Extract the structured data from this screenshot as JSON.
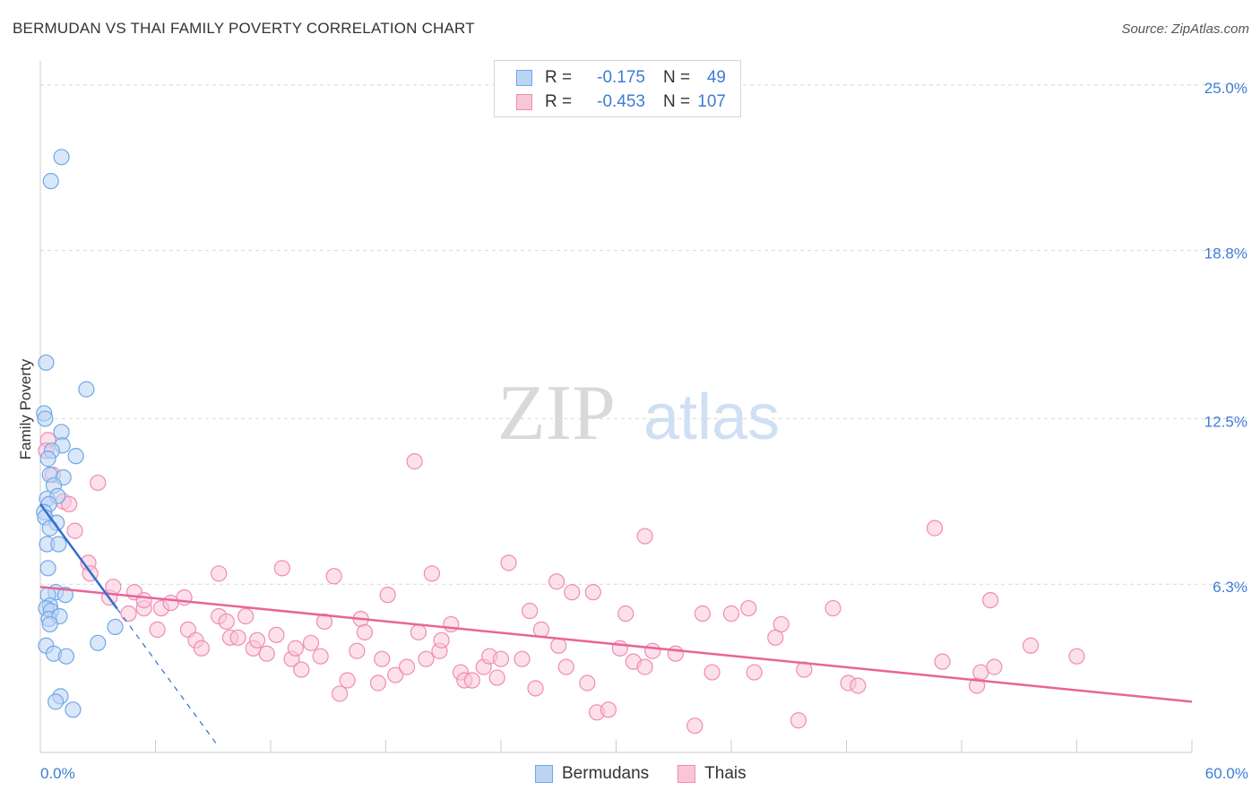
{
  "title": "BERMUDAN VS THAI FAMILY POVERTY CORRELATION CHART",
  "source": "Source: ZipAtlas.com",
  "watermark": {
    "zip": "ZIP",
    "atlas": "atlas"
  },
  "colors": {
    "blue": "#6fa8e8",
    "blue_fill": "#bcd4f4",
    "blue_line": "#2f6fd0",
    "pink": "#f08cb0",
    "pink_fill": "#f9c6d8",
    "pink_line": "#e8649a",
    "axis_text": "#3d7cd6",
    "grid": "#d8d8d8"
  },
  "legend": {
    "rows": [
      {
        "r_label": "R =",
        "r_value": "-0.175",
        "n_label": "N =",
        "n_value": "49"
      },
      {
        "r_label": "R =",
        "r_value": "-0.453",
        "n_label": "N =",
        "n_value": "107"
      }
    ]
  },
  "bottom_legend": {
    "bermudans": "Bermudans",
    "thais": "Thais"
  },
  "chart_data": {
    "type": "scatter",
    "title": "BERMUDAN VS THAI FAMILY POVERTY CORRELATION CHART",
    "xlabel": "",
    "ylabel": "Family Poverty",
    "xlim": [
      0,
      60
    ],
    "ylim": [
      0,
      25.9
    ],
    "x_tick_labels": [
      "0.0%",
      "60.0%"
    ],
    "y_ticks": [
      6.3,
      12.5,
      18.8,
      25.0
    ],
    "y_tick_labels": [
      "6.3%",
      "12.5%",
      "18.8%",
      "25.0%"
    ],
    "grid": true,
    "series": [
      {
        "name": "Bermudans",
        "points": [
          [
            1.1,
            22.3
          ],
          [
            0.55,
            21.4
          ],
          [
            0.3,
            14.6
          ],
          [
            2.4,
            13.6
          ],
          [
            0.2,
            12.7
          ],
          [
            0.25,
            12.5
          ],
          [
            1.1,
            12.0
          ],
          [
            1.15,
            11.5
          ],
          [
            0.6,
            11.3
          ],
          [
            1.85,
            11.1
          ],
          [
            0.4,
            11.0
          ],
          [
            0.5,
            10.4
          ],
          [
            1.2,
            10.3
          ],
          [
            0.7,
            10.0
          ],
          [
            0.35,
            9.5
          ],
          [
            0.9,
            9.6
          ],
          [
            0.45,
            9.3
          ],
          [
            0.2,
            9.0
          ],
          [
            0.25,
            8.8
          ],
          [
            0.85,
            8.6
          ],
          [
            0.5,
            8.4
          ],
          [
            0.35,
            7.8
          ],
          [
            0.95,
            7.8
          ],
          [
            0.4,
            6.9
          ],
          [
            0.8,
            6.0
          ],
          [
            1.3,
            5.9
          ],
          [
            0.4,
            5.9
          ],
          [
            0.5,
            5.5
          ],
          [
            0.3,
            5.4
          ],
          [
            0.55,
            5.3
          ],
          [
            0.45,
            5.0
          ],
          [
            1.0,
            5.1
          ],
          [
            0.5,
            4.8
          ],
          [
            3.9,
            4.7
          ],
          [
            3.0,
            4.1
          ],
          [
            0.3,
            4.0
          ],
          [
            0.7,
            3.7
          ],
          [
            1.35,
            3.6
          ],
          [
            1.05,
            2.1
          ],
          [
            0.8,
            1.9
          ],
          [
            1.7,
            1.6
          ]
        ]
      },
      {
        "name": "Thais",
        "points": [
          [
            0.4,
            11.7
          ],
          [
            0.3,
            11.3
          ],
          [
            0.65,
            10.4
          ],
          [
            3.0,
            10.1
          ],
          [
            1.2,
            9.4
          ],
          [
            1.5,
            9.3
          ],
          [
            1.8,
            8.3
          ],
          [
            2.5,
            7.1
          ],
          [
            2.6,
            6.7
          ],
          [
            3.6,
            5.8
          ],
          [
            3.8,
            6.2
          ],
          [
            4.6,
            5.2
          ],
          [
            4.9,
            6.0
          ],
          [
            5.4,
            5.4
          ],
          [
            5.4,
            5.7
          ],
          [
            6.3,
            5.4
          ],
          [
            6.1,
            4.6
          ],
          [
            6.8,
            5.6
          ],
          [
            7.5,
            5.8
          ],
          [
            7.7,
            4.6
          ],
          [
            8.1,
            4.2
          ],
          [
            8.4,
            3.9
          ],
          [
            9.3,
            5.1
          ],
          [
            9.3,
            6.7
          ],
          [
            9.7,
            4.9
          ],
          [
            9.9,
            4.3
          ],
          [
            10.3,
            4.3
          ],
          [
            10.7,
            5.1
          ],
          [
            11.1,
            3.9
          ],
          [
            11.3,
            4.2
          ],
          [
            11.8,
            3.7
          ],
          [
            12.3,
            4.4
          ],
          [
            12.6,
            6.9
          ],
          [
            13.1,
            3.5
          ],
          [
            13.3,
            3.9
          ],
          [
            13.6,
            3.1
          ],
          [
            14.1,
            4.1
          ],
          [
            14.6,
            3.6
          ],
          [
            14.8,
            4.9
          ],
          [
            15.3,
            6.6
          ],
          [
            15.6,
            2.2
          ],
          [
            16.0,
            2.7
          ],
          [
            16.5,
            3.8
          ],
          [
            16.7,
            5.0
          ],
          [
            16.9,
            4.5
          ],
          [
            17.6,
            2.6
          ],
          [
            17.8,
            3.5
          ],
          [
            18.1,
            5.9
          ],
          [
            18.5,
            2.9
          ],
          [
            19.1,
            3.2
          ],
          [
            19.5,
            10.9
          ],
          [
            19.7,
            4.5
          ],
          [
            20.1,
            3.5
          ],
          [
            20.4,
            6.7
          ],
          [
            20.8,
            3.8
          ],
          [
            20.9,
            4.2
          ],
          [
            21.4,
            4.8
          ],
          [
            21.9,
            3.0
          ],
          [
            22.1,
            2.7
          ],
          [
            22.5,
            2.7
          ],
          [
            23.1,
            3.2
          ],
          [
            23.4,
            3.6
          ],
          [
            23.8,
            2.8
          ],
          [
            24.0,
            3.5
          ],
          [
            24.4,
            7.1
          ],
          [
            25.1,
            3.5
          ],
          [
            25.5,
            5.3
          ],
          [
            25.8,
            2.4
          ],
          [
            26.1,
            4.6
          ],
          [
            26.9,
            6.4
          ],
          [
            27.0,
            4.0
          ],
          [
            27.4,
            3.2
          ],
          [
            27.7,
            6.0
          ],
          [
            28.5,
            2.6
          ],
          [
            28.8,
            6.0
          ],
          [
            29.0,
            1.5
          ],
          [
            29.6,
            1.6
          ],
          [
            30.2,
            3.9
          ],
          [
            30.5,
            5.2
          ],
          [
            30.9,
            3.4
          ],
          [
            31.5,
            8.1
          ],
          [
            31.5,
            3.2
          ],
          [
            31.9,
            3.8
          ],
          [
            33.1,
            3.7
          ],
          [
            34.1,
            1.0
          ],
          [
            34.5,
            5.2
          ],
          [
            35.0,
            3.0
          ],
          [
            36.0,
            5.2
          ],
          [
            36.9,
            5.4
          ],
          [
            37.2,
            3.0
          ],
          [
            38.3,
            4.3
          ],
          [
            38.6,
            4.8
          ],
          [
            39.5,
            1.2
          ],
          [
            39.8,
            3.1
          ],
          [
            41.3,
            5.4
          ],
          [
            42.1,
            2.6
          ],
          [
            42.6,
            2.5
          ],
          [
            46.6,
            8.4
          ],
          [
            47.0,
            3.4
          ],
          [
            48.8,
            2.5
          ],
          [
            49.0,
            3.0
          ],
          [
            49.5,
            5.7
          ],
          [
            49.7,
            3.2
          ],
          [
            51.6,
            4.0
          ],
          [
            54.0,
            3.6
          ]
        ]
      }
    ],
    "trendlines": [
      {
        "name": "Bermudans",
        "x_start": 0.0,
        "y_start": 9.3,
        "x_solid_end": 4.0,
        "x_dash_end": 9.3,
        "y_dash_end": 0.2
      },
      {
        "name": "Thais",
        "x_start": 0.0,
        "y_start": 6.2,
        "x_end": 60.0,
        "y_end": 1.9
      }
    ]
  }
}
